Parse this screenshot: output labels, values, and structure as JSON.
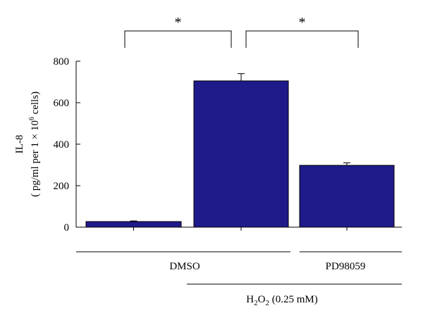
{
  "chart_data": {
    "type": "bar",
    "categories": [
      "DMSO",
      "DMSO + H2O2",
      "PD98059 + H2O2"
    ],
    "values": [
      27,
      705,
      298
    ],
    "errors": [
      3,
      35,
      12
    ],
    "ylabel_line1": "IL-8",
    "ylabel_line2_prefix": "( pg/ml per 1 × 10",
    "ylabel_line2_sup": "6",
    "ylabel_line2_suffix": " cells)",
    "ylim": [
      0,
      800
    ],
    "yticks": [
      "0",
      "200",
      "400",
      "600",
      "800"
    ],
    "ytick_values": [
      0,
      200,
      400,
      600,
      800
    ],
    "grid": false,
    "bar_color": "#1f1a8a",
    "significance": [
      {
        "from": 0,
        "to": 1,
        "label": "*"
      },
      {
        "from": 1,
        "to": 2,
        "label": "*"
      }
    ],
    "group_labels": {
      "dmso": "DMSO",
      "pd": "PD98059",
      "h2o2_prefix": "H",
      "h2o2_sub1": "2",
      "h2o2_mid": "O",
      "h2o2_sub2": "2",
      "h2o2_suffix": " (0.25 mM)"
    }
  }
}
